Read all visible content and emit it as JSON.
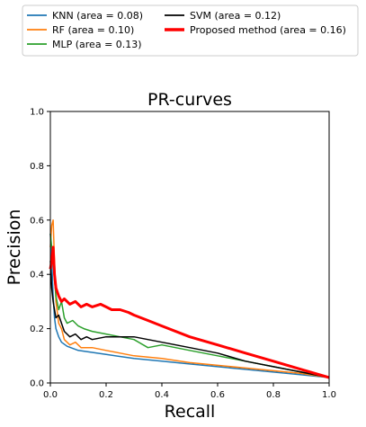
{
  "chart_data": {
    "type": "line",
    "title": "PR-curves",
    "xlabel": "Recall",
    "ylabel": "Precision",
    "xlim": [
      0.0,
      1.0
    ],
    "ylim": [
      0.0,
      1.0
    ],
    "xticks": [
      "0.0",
      "0.2",
      "0.4",
      "0.6",
      "0.8",
      "1.0"
    ],
    "yticks": [
      "0.0",
      "0.2",
      "0.4",
      "0.6",
      "0.8",
      "1.0"
    ],
    "grid": false,
    "legend_position": "top, above plot, two columns",
    "series": [
      {
        "name": "KNN (area = 0.08)",
        "color": "#1f77b4",
        "x": [
          0.0,
          0.005,
          0.01,
          0.015,
          0.02,
          0.03,
          0.04,
          0.06,
          0.1,
          0.2,
          0.3,
          0.4,
          0.5,
          0.6,
          0.7,
          0.8,
          0.9,
          1.0
        ],
        "y": [
          0.55,
          0.45,
          0.32,
          0.24,
          0.2,
          0.17,
          0.15,
          0.135,
          0.12,
          0.105,
          0.09,
          0.08,
          0.07,
          0.06,
          0.05,
          0.04,
          0.03,
          0.02
        ]
      },
      {
        "name": "RF (area = 0.10)",
        "color": "#ff7f0e",
        "x": [
          0.0,
          0.005,
          0.01,
          0.015,
          0.02,
          0.03,
          0.04,
          0.05,
          0.07,
          0.09,
          0.11,
          0.15,
          0.2,
          0.25,
          0.3,
          0.4,
          0.5,
          0.6,
          0.7,
          0.8,
          0.9,
          1.0
        ],
        "y": [
          0.5,
          0.58,
          0.6,
          0.45,
          0.3,
          0.22,
          0.2,
          0.16,
          0.14,
          0.15,
          0.13,
          0.13,
          0.12,
          0.11,
          0.1,
          0.09,
          0.075,
          0.065,
          0.055,
          0.045,
          0.035,
          0.02
        ]
      },
      {
        "name": "MLP (area = 0.13)",
        "color": "#2ca02c",
        "x": [
          0.0,
          0.005,
          0.01,
          0.015,
          0.02,
          0.03,
          0.04,
          0.05,
          0.06,
          0.08,
          0.1,
          0.12,
          0.15,
          0.2,
          0.25,
          0.3,
          0.35,
          0.4,
          0.5,
          0.6,
          0.7,
          0.8,
          0.9,
          1.0
        ],
        "y": [
          0.55,
          0.5,
          0.45,
          0.38,
          0.32,
          0.27,
          0.3,
          0.24,
          0.22,
          0.23,
          0.21,
          0.2,
          0.19,
          0.18,
          0.17,
          0.16,
          0.13,
          0.14,
          0.12,
          0.1,
          0.08,
          0.06,
          0.04,
          0.02
        ]
      },
      {
        "name": "SVM (area = 0.12)",
        "color": "#000000",
        "x": [
          0.0,
          0.005,
          0.01,
          0.015,
          0.02,
          0.03,
          0.04,
          0.05,
          0.07,
          0.09,
          0.11,
          0.13,
          0.15,
          0.2,
          0.25,
          0.3,
          0.4,
          0.5,
          0.6,
          0.7,
          0.8,
          0.9,
          1.0
        ],
        "y": [
          0.45,
          0.35,
          0.3,
          0.27,
          0.24,
          0.25,
          0.22,
          0.19,
          0.17,
          0.18,
          0.16,
          0.17,
          0.16,
          0.17,
          0.17,
          0.17,
          0.15,
          0.13,
          0.11,
          0.08,
          0.06,
          0.04,
          0.02
        ]
      },
      {
        "name": " Proposed method (area = 0.16)",
        "color": "#ff0000",
        "x": [
          0.0,
          0.005,
          0.01,
          0.015,
          0.02,
          0.03,
          0.04,
          0.05,
          0.07,
          0.09,
          0.11,
          0.13,
          0.15,
          0.18,
          0.2,
          0.22,
          0.25,
          0.28,
          0.3,
          0.35,
          0.4,
          0.5,
          0.6,
          0.7,
          0.8,
          0.9,
          1.0
        ],
        "y": [
          0.42,
          0.45,
          0.5,
          0.4,
          0.35,
          0.32,
          0.3,
          0.31,
          0.29,
          0.3,
          0.28,
          0.29,
          0.28,
          0.29,
          0.28,
          0.27,
          0.27,
          0.26,
          0.25,
          0.23,
          0.21,
          0.17,
          0.14,
          0.11,
          0.08,
          0.05,
          0.02
        ]
      }
    ]
  }
}
